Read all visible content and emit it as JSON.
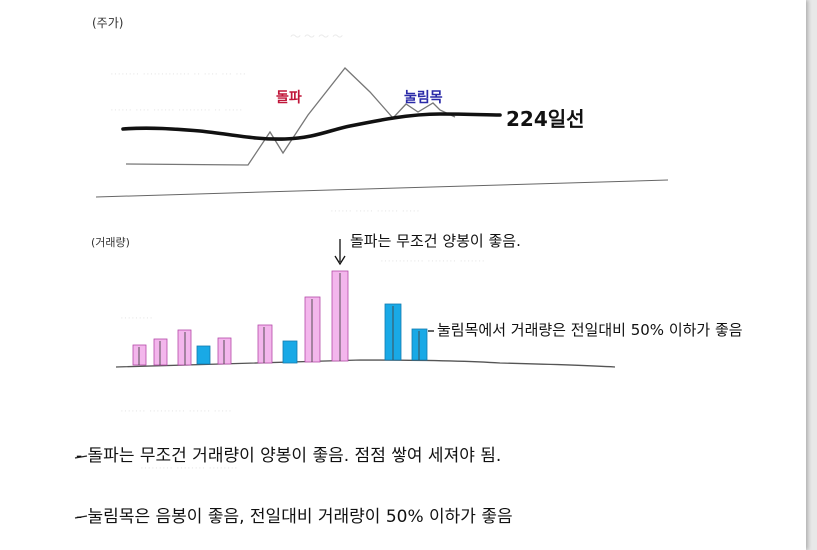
{
  "price_section": {
    "label": "(주가)",
    "breakout_label": "돌파",
    "pullback_label": "눌림목",
    "ma_label": "224일선",
    "colors": {
      "breakout": "#c0163a",
      "pullback": "#2a2aa8",
      "ma_line": "#111111"
    }
  },
  "volume_section": {
    "label": "(거래량)",
    "breakout_note": "돌파는 무조건 양봉이 좋음.",
    "pullback_note": "눌림목에서 거래량은 전일대비 50% 이하가 좋음",
    "colors": {
      "up_bar": "#f3b6ec",
      "down_bar": "#19a9e6"
    }
  },
  "notes": [
    "- 돌파는 무조건 거래량이 양봉이 좋음. 점점 쌓여 세져야 됨.",
    "- 눌림목은 음봉이 좋음, 전일대비 거래량이 50% 이하가 좋음"
  ]
}
